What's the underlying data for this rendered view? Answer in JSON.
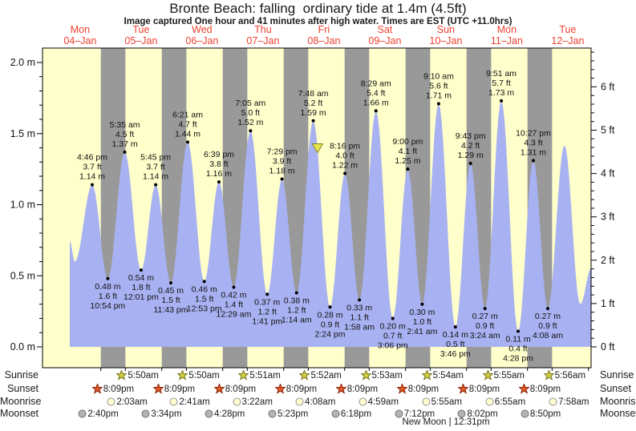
{
  "header": {
    "title": "Bronte Beach: falling  ordinary tide at 1.4m (4.5ft)",
    "subtitle": "Image captured One hour and 41 minutes after high water. Times are EST (UTC +11.0hrs)"
  },
  "colors": {
    "day_band": "#ffffcc",
    "night_band": "#999999",
    "tide_fill": "#a8b2f2",
    "day_label_red": "#f04030",
    "axis_black": "#000000",
    "marker_fill": "#e8e44e",
    "marker_stroke": "#85851a",
    "sunrise_star_fill": "#d2cf46",
    "sunrise_star_stroke": "#77771a",
    "sunset_star_fill": "#e05a28",
    "sunset_star_stroke": "#8a2408",
    "moonrise_fill": "#ffffd0",
    "moonrise_stroke": "#909090",
    "moonset_fill": "#b4b4b4",
    "moonset_stroke": "#707070"
  },
  "chart_data": {
    "type": "area",
    "title": "Bronte Beach: falling  ordinary tide at 1.4m (4.5ft)",
    "ylabel_left": "m",
    "ylabel_right": "ft",
    "y_left": {
      "major_ticks": [
        0.0,
        0.5,
        1.0,
        1.5,
        2.0
      ],
      "minor_step": 0.1,
      "range": [
        -0.15,
        2.1
      ],
      "label_suffix": " m"
    },
    "y_right": {
      "major_ticks": [
        0,
        1,
        2,
        3,
        4,
        5,
        6
      ],
      "minor_step": 0.2,
      "label_suffix": " ft",
      "m_per_ft": 0.3048
    },
    "days": [
      {
        "name": "Mon",
        "date": "04–Jan"
      },
      {
        "name": "Tue",
        "date": "05–Jan"
      },
      {
        "name": "Wed",
        "date": "06–Jan"
      },
      {
        "name": "Thu",
        "date": "07–Jan"
      },
      {
        "name": "Fri",
        "date": "08–Jan"
      },
      {
        "name": "Sat",
        "date": "09–Jan"
      },
      {
        "name": "Sun",
        "date": "10–Jan"
      },
      {
        "name": "Mon",
        "date": "11–Jan"
      },
      {
        "name": "Tue",
        "date": "12–Jan"
      }
    ],
    "day_night": {
      "sunrise_hour": 5.83,
      "sunset_hour": 20.15,
      "first_night_hidden": true
    },
    "tides": [
      {
        "day": 0,
        "type": "high",
        "time": "4:46 pm",
        "ft": "3.7 ft",
        "m": "1.14 m",
        "height_m": 1.14
      },
      {
        "day": 0,
        "type": "low",
        "time": "10:54 pm",
        "ft": "1.6 ft",
        "m": "0.48 m",
        "height_m": 0.48
      },
      {
        "day": 1,
        "type": "high",
        "time": "5:35 am",
        "ft": "4.5 ft",
        "m": "1.37 m",
        "height_m": 1.37
      },
      {
        "day": 1,
        "type": "low",
        "time": "12:01 pm",
        "ft": "1.8 ft",
        "m": "0.54 m",
        "height_m": 0.54
      },
      {
        "day": 1,
        "type": "high",
        "time": "5:45 pm",
        "ft": "3.7 ft",
        "m": "1.14 m",
        "height_m": 1.14
      },
      {
        "day": 1,
        "type": "low",
        "time": "11:43 pm",
        "ft": "1.5 ft",
        "m": "0.45 m",
        "height_m": 0.45
      },
      {
        "day": 2,
        "type": "high",
        "time": "6:21 am",
        "ft": "4.7 ft",
        "m": "1.44 m",
        "height_m": 1.44
      },
      {
        "day": 2,
        "type": "low",
        "time": "12:53 pm",
        "ft": "1.5 ft",
        "m": "0.46 m",
        "height_m": 0.46
      },
      {
        "day": 2,
        "type": "high",
        "time": "6:39 pm",
        "ft": "3.8 ft",
        "m": "1.16 m",
        "height_m": 1.16
      },
      {
        "day": 3,
        "type": "low",
        "time": "12:29 am",
        "ft": "1.4 ft",
        "m": "0.42 m",
        "height_m": 0.42
      },
      {
        "day": 3,
        "type": "high",
        "time": "7:05 am",
        "ft": "5.0 ft",
        "m": "1.52 m",
        "height_m": 1.52
      },
      {
        "day": 3,
        "type": "low",
        "time": "1:41 pm",
        "ft": "1.2 ft",
        "m": "0.37 m",
        "height_m": 0.37
      },
      {
        "day": 3,
        "type": "high",
        "time": "7:29 pm",
        "ft": "3.9 ft",
        "m": "1.18 m",
        "height_m": 1.18
      },
      {
        "day": 4,
        "type": "low",
        "time": "1:14 am",
        "ft": "1.2 ft",
        "m": "0.38 m",
        "height_m": 0.38
      },
      {
        "day": 4,
        "type": "high",
        "time": "7:48 am",
        "ft": "5.2 ft",
        "m": "1.59 m",
        "height_m": 1.59
      },
      {
        "day": 4,
        "type": "low",
        "time": "2:24 pm",
        "ft": "0.9 ft",
        "m": "0.28 m",
        "height_m": 0.28
      },
      {
        "day": 4,
        "type": "high",
        "time": "8:16 pm",
        "ft": "4.0 ft",
        "m": "1.22 m",
        "height_m": 1.22
      },
      {
        "day": 5,
        "type": "low",
        "time": "1:58 am",
        "ft": "1.1 ft",
        "m": "0.33 m",
        "height_m": 0.33
      },
      {
        "day": 5,
        "type": "high",
        "time": "8:29 am",
        "ft": "5.4 ft",
        "m": "1.66 m",
        "height_m": 1.66
      },
      {
        "day": 5,
        "type": "low",
        "time": "3:06 pm",
        "ft": "0.7 ft",
        "m": "0.20 m",
        "height_m": 0.2
      },
      {
        "day": 5,
        "type": "high",
        "time": "9:00 pm",
        "ft": "4.1 ft",
        "m": "1.25 m",
        "height_m": 1.25
      },
      {
        "day": 6,
        "type": "low",
        "time": "2:41 am",
        "ft": "1.0 ft",
        "m": "0.30 m",
        "height_m": 0.3
      },
      {
        "day": 6,
        "type": "high",
        "time": "9:10 am",
        "ft": "5.6 ft",
        "m": "1.71 m",
        "height_m": 1.71
      },
      {
        "day": 6,
        "type": "low",
        "time": "3:46 pm",
        "ft": "0.5 ft",
        "m": "0.14 m",
        "height_m": 0.14
      },
      {
        "day": 6,
        "type": "high",
        "time": "9:43 pm",
        "ft": "4.2 ft",
        "m": "1.29 m",
        "height_m": 1.29
      },
      {
        "day": 7,
        "type": "low",
        "time": "3:24 am",
        "ft": "0.9 ft",
        "m": "0.27 m",
        "height_m": 0.27
      },
      {
        "day": 7,
        "type": "high",
        "time": "9:51 am",
        "ft": "5.7 ft",
        "m": "1.73 m",
        "height_m": 1.73
      },
      {
        "day": 7,
        "type": "low",
        "time": "4:28 pm",
        "ft": "0.4 ft",
        "m": "0.11 m",
        "height_m": 0.11
      },
      {
        "day": 7,
        "type": "high",
        "time": "10:27 pm",
        "ft": "4.3 ft",
        "m": "1.31 m",
        "height_m": 1.31
      },
      {
        "day": 8,
        "type": "low",
        "time": "4:08 am",
        "ft": "0.9 ft",
        "m": "0.27 m",
        "height_m": 0.27
      }
    ],
    "curve_leadin": [
      {
        "t": 7.92,
        "h": 0.745
      },
      {
        "t": 9.9,
        "h": 0.6
      }
    ],
    "curve_tail": [
      {
        "t": 202.7,
        "h": 1.42
      },
      {
        "t": 208.9,
        "h": 0.3
      },
      {
        "t": 213.4,
        "h": 0.56
      }
    ],
    "current_marker": {
      "day": 4,
      "hour": 9.48,
      "height_m": 1.4
    }
  },
  "astro": {
    "sunrise": {
      "label": "Sunrise",
      "entries": [
        {
          "day": 1,
          "time": "5:50am"
        },
        {
          "day": 2,
          "time": "5:50am"
        },
        {
          "day": 3,
          "time": "5:51am"
        },
        {
          "day": 4,
          "time": "5:52am"
        },
        {
          "day": 5,
          "time": "5:53am"
        },
        {
          "day": 6,
          "time": "5:54am"
        },
        {
          "day": 7,
          "time": "5:55am"
        },
        {
          "day": 8,
          "time": "5:56am"
        }
      ]
    },
    "sunset": {
      "label": "Sunset",
      "entries": [
        {
          "day": 0,
          "time": "8:09pm"
        },
        {
          "day": 1,
          "time": "8:09pm"
        },
        {
          "day": 2,
          "time": "8:09pm"
        },
        {
          "day": 3,
          "time": "8:09pm"
        },
        {
          "day": 4,
          "time": "8:09pm"
        },
        {
          "day": 5,
          "time": "8:09pm"
        },
        {
          "day": 6,
          "time": "8:09pm"
        },
        {
          "day": 7,
          "time": "8:09pm"
        }
      ]
    },
    "moonrise": {
      "label": "Moonrise",
      "entries": [
        {
          "day": 1,
          "time": "2:03am"
        },
        {
          "day": 2,
          "time": "2:41am"
        },
        {
          "day": 3,
          "time": "3:22am"
        },
        {
          "day": 4,
          "time": "4:08am"
        },
        {
          "day": 5,
          "time": "4:59am"
        },
        {
          "day": 6,
          "time": "5:55am"
        },
        {
          "day": 7,
          "time": "6:55am"
        },
        {
          "day": 8,
          "time": "7:58am"
        }
      ]
    },
    "moonset": {
      "label": "Moonset",
      "entries": [
        {
          "day": 0,
          "time": "2:40pm"
        },
        {
          "day": 1,
          "time": "3:34pm"
        },
        {
          "day": 2,
          "time": "4:28pm"
        },
        {
          "day": 3,
          "time": "5:23pm"
        },
        {
          "day": 4,
          "time": "6:18pm"
        },
        {
          "day": 5,
          "time": "7:12pm"
        },
        {
          "day": 6,
          "time": "8:02pm"
        },
        {
          "day": 7,
          "time": "8:50pm"
        }
      ]
    },
    "new_moon": {
      "text": "New Moon | 12:31pm",
      "day": 6
    }
  }
}
